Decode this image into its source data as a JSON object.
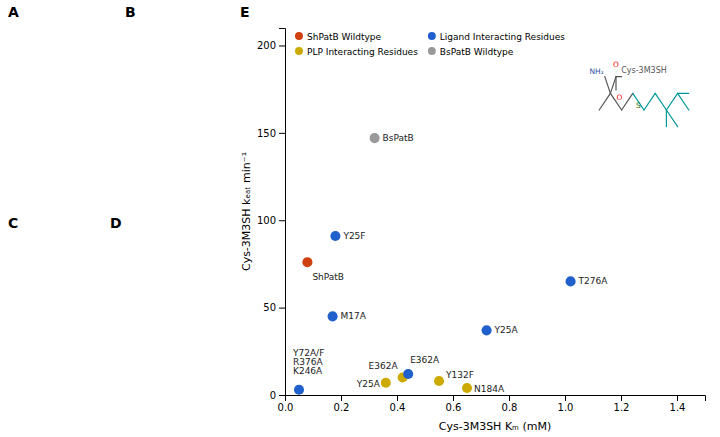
{
  "chart_data": {
    "type": "scatter",
    "xlabel": "Cys-3M3SH Kₘ (mM)",
    "ylabel": "Cys-3M3SH kₑₐₜ min⁻¹",
    "xlim": [
      0.0,
      1.5
    ],
    "ylim": [
      0,
      210
    ],
    "xticks": [
      {
        "value": 0.0,
        "label": "0.0"
      },
      0.2,
      0.4,
      0.6,
      0.8,
      {
        "value": 1.0,
        "label": "1.0"
      },
      1.2,
      1.4
    ],
    "yticks": [
      0,
      50,
      100,
      150,
      200
    ],
    "grid": false,
    "legend": "upper left",
    "marker": "circle",
    "series": [
      {
        "name": "ShPatB Wildtype",
        "color": "#d04010",
        "x": [
          0.08
        ],
        "y": [
          76
        ],
        "labels": [
          "ShPatB"
        ]
      },
      {
        "name": "PLP Interacting Residues",
        "color": "#ccaa00",
        "x": [
          0.36,
          0.42,
          0.55,
          0.65
        ],
        "y": [
          7,
          10,
          8,
          4
        ],
        "labels": [
          "Y25A",
          "E362A",
          "Y132F",
          "N184A"
        ]
      },
      {
        "name": "Ligand Interacting Residues",
        "color": "#2060cc",
        "x": [
          0.18,
          0.17,
          1.02,
          0.72,
          0.44,
          0.05
        ],
        "y": [
          91,
          45,
          65,
          37,
          12,
          3
        ],
        "labels": [
          "Y25F",
          "M17A",
          "T276A",
          "Y25A",
          "E362A",
          "Y72A/F\nR376A\nK246A"
        ]
      },
      {
        "name": "BsPatB Wildtype",
        "color": "#999999",
        "x": [
          0.32
        ],
        "y": [
          147
        ],
        "labels": [
          "BsPatB"
        ]
      }
    ],
    "panel_labels": [
      "A",
      "B",
      "C",
      "D",
      "E"
    ],
    "inset": {
      "title": "Cys-3M3SH",
      "labels": [
        "NH₂",
        "O",
        "O",
        "S"
      ]
    }
  }
}
